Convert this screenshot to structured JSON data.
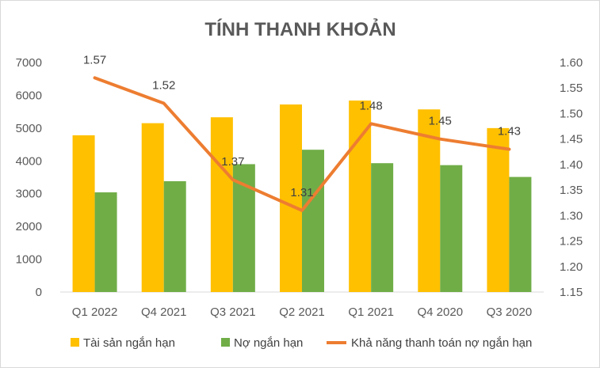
{
  "chart_data": {
    "type": "bar",
    "title": "TÍNH THANH KHOẢN",
    "categories": [
      "Q1 2022",
      "Q4 2021",
      "Q3 2021",
      "Q2 2021",
      "Q1 2021",
      "Q4 2020",
      "Q3 2020"
    ],
    "series": [
      {
        "name": "Tài sản ngắn hạn",
        "type": "bar",
        "axis": "left",
        "color": "#FFC000",
        "values": [
          4780,
          5150,
          5330,
          5720,
          5840,
          5570,
          5000
        ]
      },
      {
        "name": "Nợ ngắn hạn",
        "type": "bar",
        "axis": "left",
        "color": "#70AD47",
        "values": [
          3040,
          3380,
          3900,
          4340,
          3930,
          3870,
          3510
        ]
      },
      {
        "name": "Khả năng thanh toán nợ ngắn hạn",
        "type": "line",
        "axis": "right",
        "color": "#ED7D31",
        "values": [
          1.57,
          1.52,
          1.37,
          1.31,
          1.48,
          1.45,
          1.43
        ],
        "labels": [
          "1.57",
          "1.52",
          "1.37",
          "1.31",
          "1.48",
          "1.45",
          "1.43"
        ]
      }
    ],
    "y_left": {
      "min": 0,
      "max": 7000,
      "step": 1000,
      "tick_labels": [
        "0",
        "1000",
        "2000",
        "3000",
        "4000",
        "5000",
        "6000",
        "7000"
      ]
    },
    "y_right": {
      "min": 1.15,
      "max": 1.6,
      "step": 0.05,
      "tick_labels": [
        "1.15",
        "1.20",
        "1.25",
        "1.30",
        "1.35",
        "1.40",
        "1.45",
        "1.50",
        "1.55",
        "1.60"
      ]
    },
    "grid": false,
    "legend_position": "bottom"
  }
}
